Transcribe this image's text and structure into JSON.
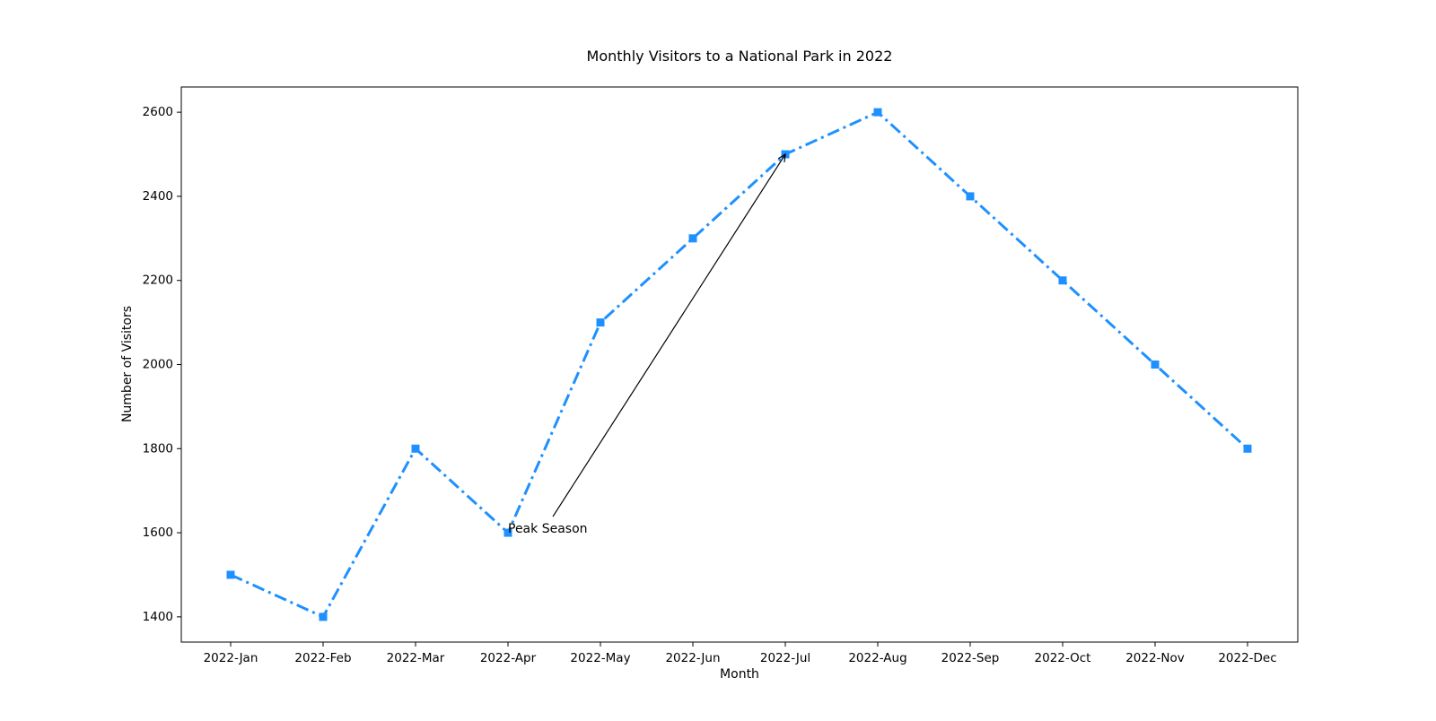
{
  "chart_data": {
    "type": "line",
    "title": "Monthly Visitors to a National Park in 2022",
    "xlabel": "Month",
    "ylabel": "Number of Visitors",
    "categories": [
      "2022-Jan",
      "2022-Feb",
      "2022-Mar",
      "2022-Apr",
      "2022-May",
      "2022-Jun",
      "2022-Jul",
      "2022-Aug",
      "2022-Sep",
      "2022-Oct",
      "2022-Nov",
      "2022-Dec"
    ],
    "series": [
      {
        "values": [
          1500,
          1400,
          1800,
          1600,
          2100,
          2300,
          2500,
          2600,
          2400,
          2200,
          2000,
          1800
        ],
        "color": "#1e90ff",
        "line_style": "dash-dot",
        "marker": "square"
      }
    ],
    "ylim": [
      1340,
      2660
    ],
    "yticks": [
      1400,
      1600,
      1800,
      2000,
      2200,
      2400,
      2600
    ],
    "grid": false,
    "legend": "none",
    "annotations": [
      {
        "text": "Peak Season",
        "text_at": {
          "category": "2022-Apr",
          "value": 1600
        },
        "arrow_to": {
          "category": "2022-Jul",
          "value": 2500
        }
      }
    ]
  }
}
